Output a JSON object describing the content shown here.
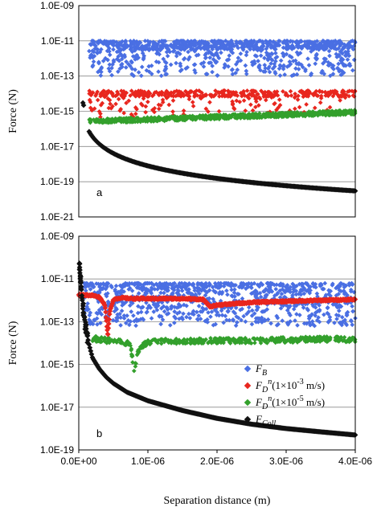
{
  "chart_data": [
    {
      "type": "scatter",
      "panel_label": "a",
      "ylabel": "Force (N)",
      "xlabel": "",
      "yscale": "log",
      "xlim": [
        0,
        4e-06
      ],
      "ylim": [
        1e-21,
        1e-09
      ],
      "y_ticks": [
        "1.0E-09",
        "1.0E-11",
        "1.0E-13",
        "1.0E-15",
        "1.0E-17",
        "1.0E-19",
        "1.0E-21"
      ],
      "grid": true,
      "legend": "none",
      "series": [
        {
          "color": "#4a6fe3",
          "description_values": {
            "x_range": [
              0,
              4e-06
            ],
            "y_range": [
              1e-13,
              1e-11
            ]
          }
        },
        {
          "color": "#e8261e",
          "description_values": {
            "x_range": [
              0,
              4e-06
            ],
            "y_range": [
              3e-16,
              1.5e-13
            ]
          }
        },
        {
          "color": "#33a02c",
          "description_values": {
            "x_range": [
              0,
              4e-06
            ],
            "y_range": [
              2e-16,
              1.2e-15
            ]
          }
        },
        {
          "color": "#111111",
          "x": [
            1.5e-07,
            2e-07,
            3e-07,
            5e-07,
            7.5e-07,
            1e-06,
            1.5e-06,
            2e-06,
            2.5e-06,
            3e-06,
            3.5e-06,
            4e-06
          ],
          "y": [
            7e-17,
            3e-17,
            1e-17,
            3e-18,
            1.2e-18,
            6e-19,
            2.5e-19,
            1.3e-19,
            8e-20,
            5.5e-20,
            4e-20,
            3e-20
          ]
        }
      ]
    },
    {
      "type": "scatter",
      "panel_label": "b",
      "ylabel": "Force (N)",
      "xlabel": "Separation distance (m)",
      "yscale": "log",
      "xlim": [
        0,
        4e-06
      ],
      "ylim": [
        1e-19,
        1e-09
      ],
      "x_ticks": [
        "0.0E+00",
        "1.0E-06",
        "2.0E-06",
        "3.0E-06",
        "4.0E-06"
      ],
      "y_ticks": [
        "1.0E-09",
        "1.0E-11",
        "1.0E-13",
        "1.0E-15",
        "1.0E-17",
        "1.0E-19"
      ],
      "grid": true,
      "legend": "right",
      "series": [
        {
          "name_main": "F",
          "name_sub": "B",
          "name_suffix": "",
          "color": "#4a6fe3"
        },
        {
          "name_main": "F",
          "name_sub": "D",
          "name_sup": "n",
          "name_suffix": "(1×10",
          "name_exp": "-3",
          "name_tail": " m/s)",
          "color": "#e8261e",
          "x": [
            0,
            2e-07,
            3e-07,
            3.8e-07,
            4.2e-07,
            4.5e-07,
            5e-07,
            6e-07,
            8e-07,
            1e-06,
            1.2e-06,
            1.5e-06,
            1.8e-06,
            1.9e-06,
            2e-06,
            2.5e-06,
            3e-06,
            3.5e-06,
            4e-06
          ],
          "y": [
            1.8e-12,
            1.7e-12,
            1.4e-12,
            6e-13,
            2e-14,
            3e-13,
            1.1e-12,
            1.3e-12,
            1.2e-12,
            1.2e-12,
            1.2e-12,
            1.2e-12,
            1.1e-12,
            5e-13,
            6e-13,
            8e-13,
            9e-13,
            1e-12,
            1.1e-12
          ]
        },
        {
          "name_main": "F",
          "name_sub": "D",
          "name_sup": "n",
          "name_suffix": "(1×10",
          "name_exp": "-5",
          "name_tail": " m/s)",
          "color": "#33a02c",
          "x": [
            2e-07,
            3e-07,
            4e-07,
            5e-07,
            6e-07,
            7e-07,
            7.5e-07,
            8e-07,
            8.5e-07,
            9e-07,
            1e-06,
            1.2e-06,
            1.5e-06,
            2e-06,
            2.5e-06,
            3e-06,
            3.5e-06,
            4e-06
          ],
          "y": [
            1.6e-14,
            1.5e-14,
            1.3e-14,
            1.3e-14,
            1.2e-14,
            1e-14,
            8e-15,
            5e-16,
            3e-15,
            7e-15,
            1.1e-14,
            1.2e-14,
            1.2e-14,
            1.3e-14,
            1.3e-14,
            1.4e-14,
            1.5e-14,
            1.5e-14
          ]
        },
        {
          "name_main": "F",
          "name_sub": "Coll",
          "name_suffix": "",
          "color": "#111111",
          "x": [
            1e-08,
            5e-08,
            1e-07,
            1.5e-07,
            2e-07,
            3e-07,
            4e-07,
            5e-07,
            7e-07,
            1e-06,
            1.5e-06,
            2e-06,
            2.5e-06,
            3e-06,
            3.5e-06,
            4e-06
          ],
          "y": [
            5e-11,
            1e-12,
            5e-14,
            8e-15,
            2e-15,
            6e-16,
            2.5e-16,
            1.3e-16,
            5e-17,
            2e-17,
            7e-18,
            3e-18,
            1.6e-18,
            1e-18,
            7e-19,
            5e-19
          ]
        }
      ]
    }
  ]
}
